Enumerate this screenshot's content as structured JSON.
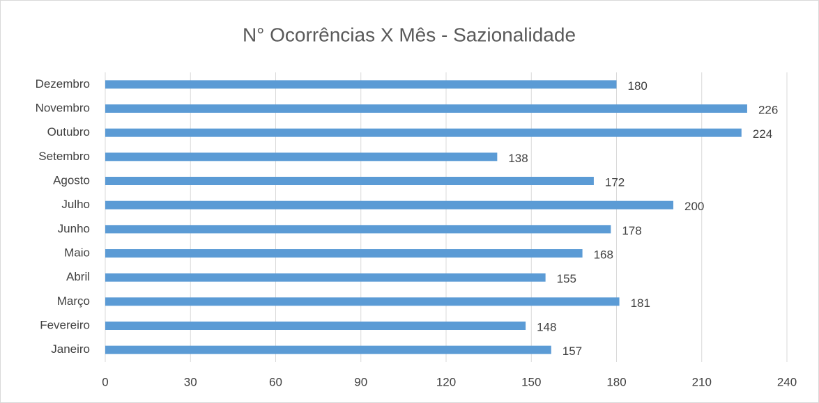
{
  "chart_data": {
    "type": "bar",
    "orientation": "horizontal",
    "title": "N° Ocorrências X Mês - Sazionalidade",
    "categories": [
      "Janeiro",
      "Fevereiro",
      "Março",
      "Abril",
      "Maio",
      "Junho",
      "Julho",
      "Agosto",
      "Setembro",
      "Outubro",
      "Novembro",
      "Dezembro"
    ],
    "values": [
      157,
      148,
      181,
      155,
      168,
      178,
      200,
      172,
      138,
      224,
      226,
      180
    ],
    "color": "#5b9bd5",
    "xlim": [
      0,
      240
    ],
    "xticks": [
      0,
      30,
      60,
      90,
      120,
      150,
      180,
      210,
      240
    ],
    "grid": true
  }
}
